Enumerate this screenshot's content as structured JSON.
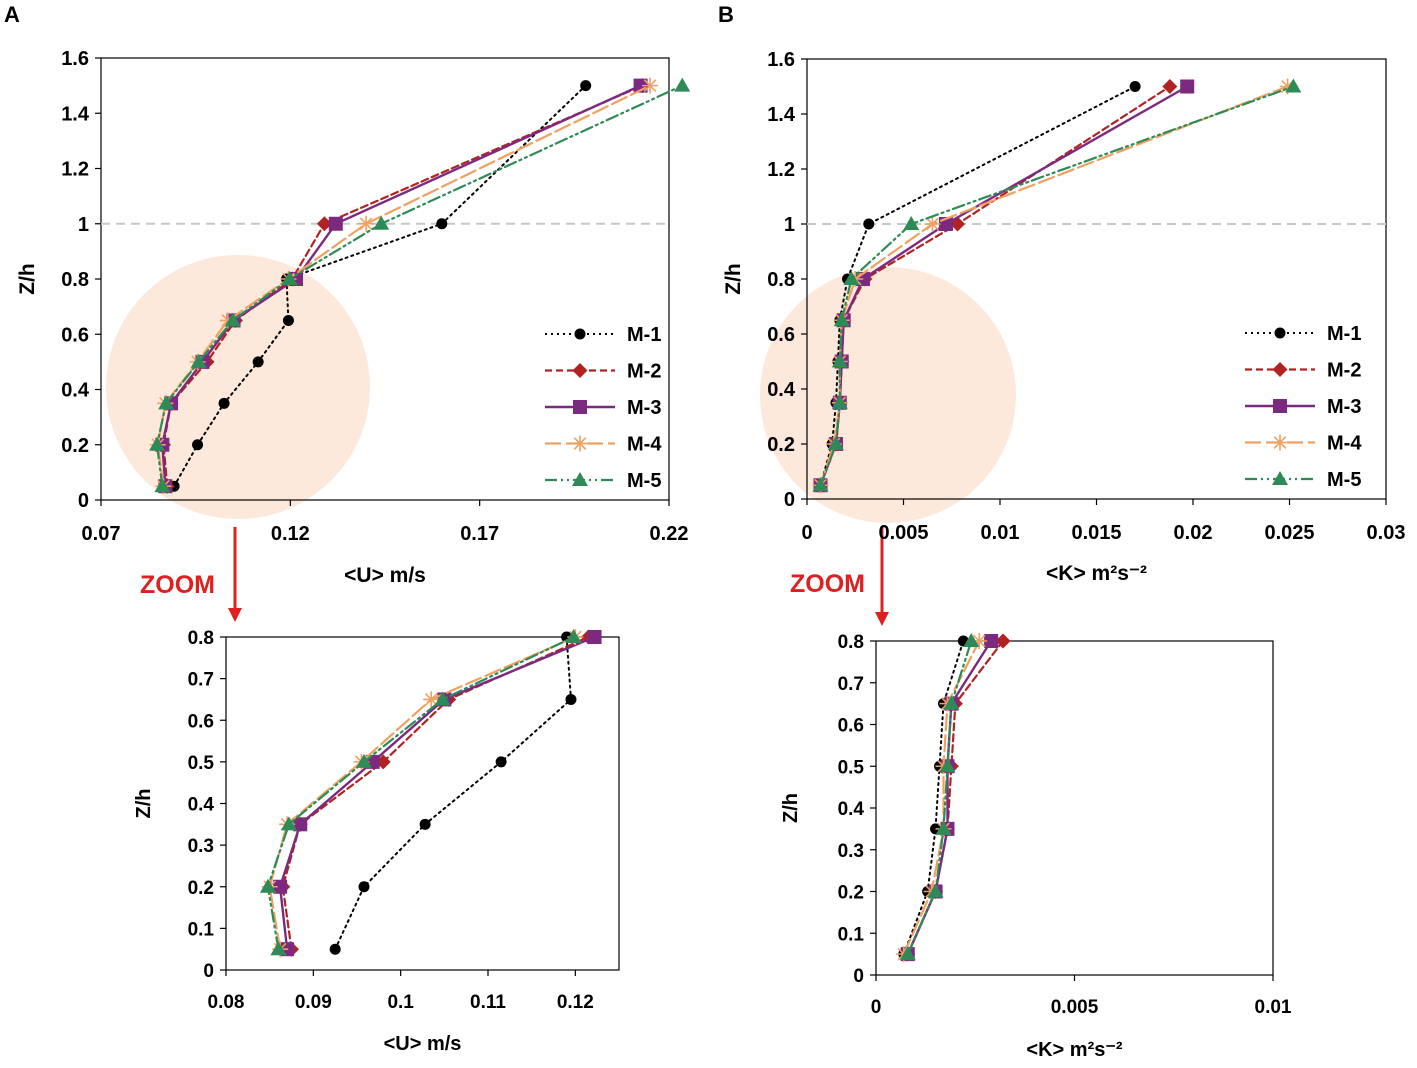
{
  "panel_labels": {
    "a": "A",
    "b": "B"
  },
  "zoom_label": "ZOOM",
  "colors": {
    "m1": "#000000",
    "m2": "#b22222",
    "m3": "#7b2a80",
    "m4": "#f0a060",
    "m5": "#2e8b57",
    "highlight": "#fde9dc",
    "arrow": "#e02020",
    "refline": "#c8c8c8"
  },
  "chart_data": [
    {
      "id": "A-main",
      "type": "line",
      "xlabel": "<U> m/s",
      "ylabel": "Z/h",
      "xlim": [
        0.07,
        0.22
      ],
      "ylim": [
        0,
        1.6
      ],
      "xticks": [
        0.07,
        0.12,
        0.17,
        0.22
      ],
      "xtick_labels": [
        "0.07",
        "0.12",
        "0.17",
        "0.22"
      ],
      "yticks": [
        0,
        0.2,
        0.4,
        0.6,
        0.8,
        1,
        1.2,
        1.4,
        1.6
      ],
      "ytick_labels": [
        "0",
        "0.2",
        "0.4",
        "0.6",
        "0.8",
        "1",
        "1.2",
        "1.4",
        "1.6"
      ],
      "refline_y": 1,
      "legend_position": "right",
      "series": [
        {
          "name": "M-1",
          "x": [
            0.0893,
            0.0955,
            0.1025,
            0.1115,
            0.1195,
            0.119,
            0.16,
            0.198
          ],
          "y": [
            0.05,
            0.2,
            0.35,
            0.5,
            0.65,
            0.8,
            1.0,
            1.5
          ]
        },
        {
          "name": "M-2",
          "x": [
            0.0875,
            0.0865,
            0.0885,
            0.098,
            0.1055,
            0.1205,
            0.129,
            0.213
          ],
          "y": [
            0.05,
            0.2,
            0.35,
            0.5,
            0.65,
            0.8,
            1.0,
            1.5
          ]
        },
        {
          "name": "M-3",
          "x": [
            0.087,
            0.0862,
            0.0885,
            0.0968,
            0.105,
            0.1215,
            0.132,
            0.2125
          ],
          "y": [
            0.05,
            0.2,
            0.35,
            0.5,
            0.65,
            0.8,
            1.0,
            1.5
          ]
        },
        {
          "name": "M-4",
          "x": [
            0.0865,
            0.085,
            0.087,
            0.0955,
            0.1035,
            0.1195,
            0.14,
            0.215
          ],
          "y": [
            0.05,
            0.2,
            0.35,
            0.5,
            0.65,
            0.8,
            1.0,
            1.5
          ]
        },
        {
          "name": "M-5",
          "x": [
            0.0862,
            0.0848,
            0.0872,
            0.0958,
            0.1048,
            0.1198,
            0.144,
            0.2235
          ],
          "y": [
            0.05,
            0.2,
            0.35,
            0.5,
            0.65,
            0.8,
            1.0,
            1.5
          ]
        }
      ]
    },
    {
      "id": "B-main",
      "type": "line",
      "xlabel": "<K> m²s⁻²",
      "ylabel": "Z/h",
      "xlim": [
        0,
        0.03
      ],
      "ylim": [
        0,
        1.6
      ],
      "xticks": [
        0,
        0.005,
        0.01,
        0.015,
        0.02,
        0.025,
        0.03
      ],
      "xtick_labels": [
        "0",
        "0.005",
        "0.01",
        "0.015",
        "0.02",
        "0.025",
        "0.03"
      ],
      "yticks": [
        0,
        0.2,
        0.4,
        0.6,
        0.8,
        1,
        1.2,
        1.4,
        1.6
      ],
      "ytick_labels": [
        "0",
        "0.2",
        "0.4",
        "0.6",
        "0.8",
        "1",
        "1.2",
        "1.4",
        "1.6"
      ],
      "refline_y": 1,
      "legend_position": "right",
      "series": [
        {
          "name": "M-1",
          "x": [
            0.0007,
            0.0013,
            0.0015,
            0.0016,
            0.0017,
            0.0021,
            0.0032,
            0.017
          ],
          "y": [
            0.05,
            0.2,
            0.35,
            0.5,
            0.65,
            0.8,
            1.0,
            1.5
          ]
        },
        {
          "name": "M-2",
          "x": [
            0.0007,
            0.0015,
            0.0017,
            0.0018,
            0.0019,
            0.003,
            0.0078,
            0.0188
          ],
          "y": [
            0.05,
            0.2,
            0.35,
            0.5,
            0.65,
            0.8,
            1.0,
            1.5
          ]
        },
        {
          "name": "M-3",
          "x": [
            0.0007,
            0.0015,
            0.0017,
            0.0018,
            0.0019,
            0.0029,
            0.0072,
            0.0197
          ],
          "y": [
            0.05,
            0.2,
            0.35,
            0.5,
            0.65,
            0.8,
            1.0,
            1.5
          ]
        },
        {
          "name": "M-4",
          "x": [
            0.0007,
            0.0014,
            0.0017,
            0.0017,
            0.0018,
            0.0025,
            0.0065,
            0.0249
          ],
          "y": [
            0.05,
            0.2,
            0.35,
            0.5,
            0.65,
            0.8,
            1.0,
            1.5
          ]
        },
        {
          "name": "M-5",
          "x": [
            0.0007,
            0.0015,
            0.0017,
            0.0017,
            0.0018,
            0.0023,
            0.0054,
            0.0252
          ],
          "y": [
            0.05,
            0.2,
            0.35,
            0.5,
            0.65,
            0.8,
            1.0,
            1.5
          ]
        }
      ]
    },
    {
      "id": "A-zoom",
      "type": "line",
      "xlabel": "<U> m/s",
      "ylabel": "Z/h",
      "xlim": [
        0.08,
        0.125
      ],
      "ylim": [
        0,
        0.8
      ],
      "xticks": [
        0.08,
        0.09,
        0.1,
        0.11,
        0.12
      ],
      "xtick_labels": [
        "0.08",
        "0.09",
        "0.1",
        "0.11",
        "0.12"
      ],
      "yticks": [
        0,
        0.1,
        0.2,
        0.3,
        0.4,
        0.5,
        0.6,
        0.7,
        0.8
      ],
      "ytick_labels": [
        "0",
        "0.1",
        "0.2",
        "0.3",
        "0.4",
        "0.5",
        "0.6",
        "0.7",
        "0.8"
      ],
      "series": [
        {
          "name": "M-1",
          "x": [
            0.0925,
            0.0958,
            0.1028,
            0.1115,
            0.1195,
            0.119
          ],
          "y": [
            0.05,
            0.2,
            0.35,
            0.5,
            0.65,
            0.8
          ]
        },
        {
          "name": "M-2",
          "x": [
            0.0875,
            0.0865,
            0.0885,
            0.098,
            0.1055,
            0.1215
          ],
          "y": [
            0.05,
            0.2,
            0.35,
            0.5,
            0.65,
            0.8
          ]
        },
        {
          "name": "M-3",
          "x": [
            0.087,
            0.0862,
            0.0885,
            0.0968,
            0.105,
            0.1222
          ],
          "y": [
            0.05,
            0.2,
            0.35,
            0.5,
            0.65,
            0.8
          ]
        },
        {
          "name": "M-4",
          "x": [
            0.0862,
            0.085,
            0.087,
            0.0955,
            0.1035,
            0.12
          ],
          "y": [
            0.05,
            0.2,
            0.35,
            0.5,
            0.65,
            0.8
          ]
        },
        {
          "name": "M-5",
          "x": [
            0.086,
            0.0848,
            0.0872,
            0.0958,
            0.1048,
            0.1198
          ],
          "y": [
            0.05,
            0.2,
            0.35,
            0.5,
            0.65,
            0.8
          ]
        }
      ]
    },
    {
      "id": "B-zoom",
      "type": "line",
      "xlabel": "<K> m²s⁻²",
      "ylabel": "Z/h",
      "xlim": [
        0,
        0.01
      ],
      "ylim": [
        0,
        0.8
      ],
      "xticks": [
        0,
        0.005,
        0.01
      ],
      "xtick_labels": [
        "0",
        "0.005",
        "0.01"
      ],
      "yticks": [
        0,
        0.1,
        0.2,
        0.3,
        0.4,
        0.5,
        0.6,
        0.7,
        0.8
      ],
      "ytick_labels": [
        "0",
        "0.1",
        "0.2",
        "0.3",
        "0.4",
        "0.5",
        "0.6",
        "0.7",
        "0.8"
      ],
      "series": [
        {
          "name": "M-1",
          "x": [
            0.0007,
            0.0013,
            0.0015,
            0.0016,
            0.0017,
            0.0022
          ],
          "y": [
            0.05,
            0.2,
            0.35,
            0.5,
            0.65,
            0.8
          ]
        },
        {
          "name": "M-2",
          "x": [
            0.0008,
            0.0015,
            0.0018,
            0.0019,
            0.002,
            0.0032
          ],
          "y": [
            0.05,
            0.2,
            0.35,
            0.5,
            0.65,
            0.8
          ]
        },
        {
          "name": "M-3",
          "x": [
            0.0008,
            0.0015,
            0.0018,
            0.0018,
            0.0019,
            0.0029
          ],
          "y": [
            0.05,
            0.2,
            0.35,
            0.5,
            0.65,
            0.8
          ]
        },
        {
          "name": "M-4",
          "x": [
            0.0007,
            0.0014,
            0.0017,
            0.0017,
            0.0018,
            0.0026
          ],
          "y": [
            0.05,
            0.2,
            0.35,
            0.5,
            0.65,
            0.8
          ]
        },
        {
          "name": "M-5",
          "x": [
            0.0008,
            0.0015,
            0.0017,
            0.0018,
            0.0019,
            0.0024
          ],
          "y": [
            0.05,
            0.2,
            0.35,
            0.5,
            0.65,
            0.8
          ]
        }
      ]
    }
  ]
}
